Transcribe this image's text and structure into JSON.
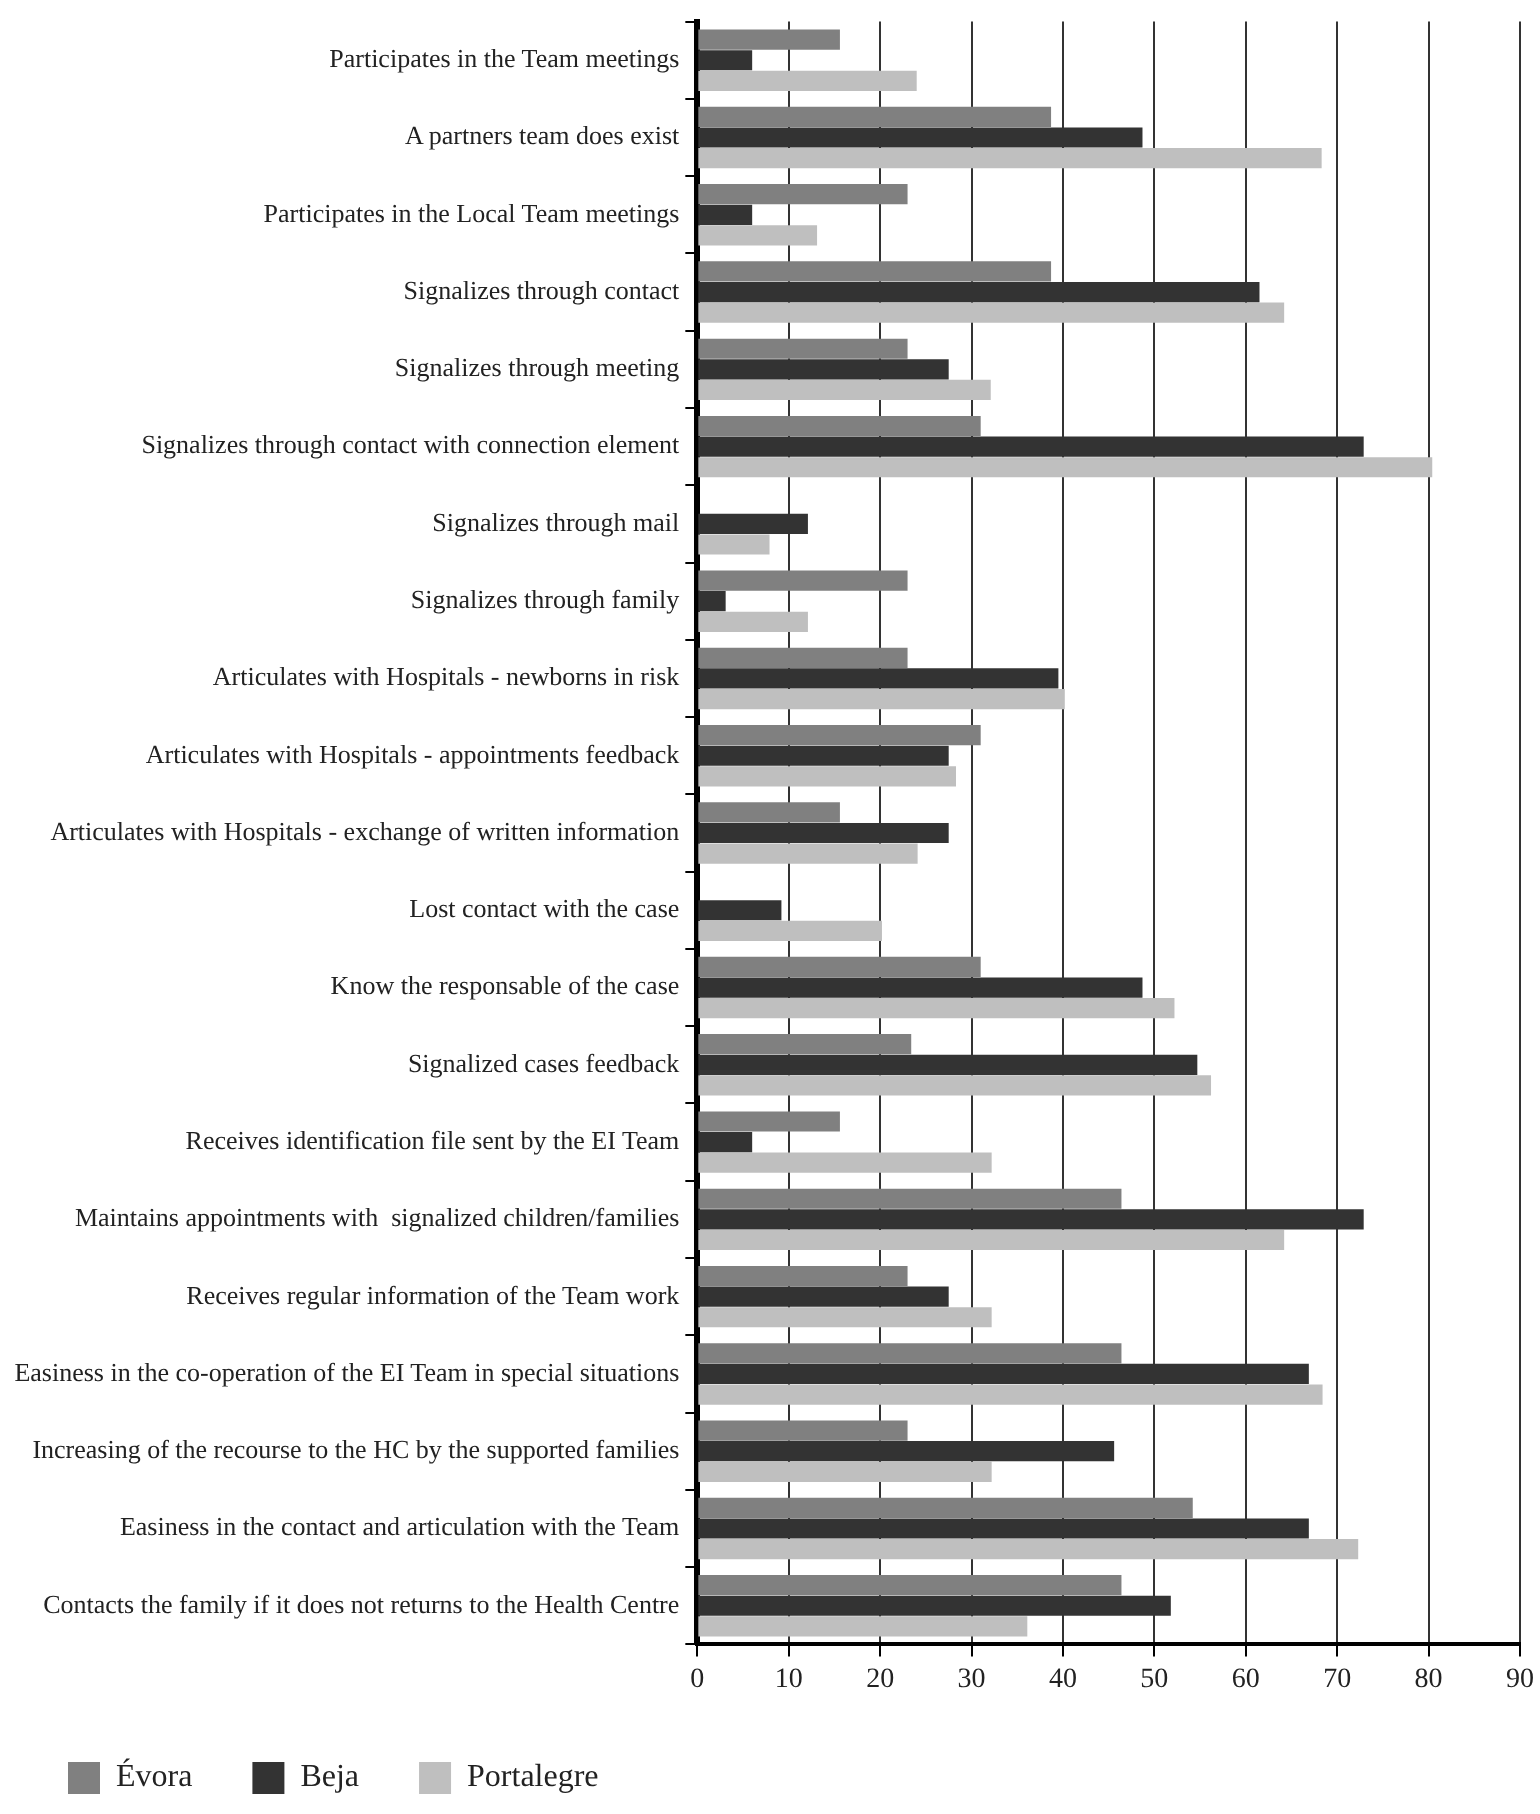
{
  "chart_data": {
    "type": "bar",
    "orientation": "horizontal",
    "categories": [
      "Participates in the Team meetings",
      "A partners team does exist",
      "Participates in the Local Team meetings",
      "Signalizes through contact",
      "Signalizes through meeting",
      "Signalizes through contact with connection element",
      "Signalizes through mail",
      "Signalizes through family",
      "Articulates with Hospitals - newborns in risk",
      "Articulates with Hospitals - appointments feedback",
      "Articulates with Hospitals - exchange of written information",
      "Lost contact with the case",
      "Know the responsable of the case",
      "Signalized cases feedback",
      "Receives identification file sent by the EI Team",
      "Maintains appointments with  signalized children/families",
      "Receives regular information of the Team work",
      "Easiness in the co-operation of the EI Team in special situations",
      "Increasing of the recourse to the HC by the supported families",
      "Easiness in the contact and articulation with the Team",
      "Contacts the family if it does not returns to the Health Centre"
    ],
    "series": [
      {
        "name": "Évora",
        "color": "#808080",
        "values": [
          15.6,
          38.7,
          23,
          38.7,
          23,
          31,
          0,
          23,
          23,
          31,
          15.6,
          0,
          31,
          23.4,
          15.6,
          46.4,
          23,
          46.4,
          23,
          54.2,
          46.4
        ]
      },
      {
        "name": "Beja",
        "color": "#333333",
        "values": [
          6,
          48.7,
          6,
          61.5,
          27.5,
          72.9,
          12.1,
          3.1,
          39.5,
          27.5,
          27.5,
          9.2,
          48.7,
          54.7,
          6,
          72.9,
          27.5,
          66.9,
          45.6,
          66.9,
          51.8
        ]
      },
      {
        "name": "Portalegre",
        "color": "#bfbfbf",
        "values": [
          24,
          68.3,
          13.1,
          64.2,
          32.1,
          80.4,
          7.9,
          12.1,
          40.2,
          28.3,
          24.1,
          20.2,
          52.2,
          56.2,
          32.2,
          64.2,
          32.2,
          68.4,
          32.2,
          72.3,
          36.1
        ]
      }
    ],
    "xlim": [
      0,
      90
    ],
    "xticks": [
      0,
      10,
      20,
      30,
      40,
      50,
      60,
      70,
      80,
      90
    ],
    "grid": "x",
    "legend": "bottom"
  }
}
